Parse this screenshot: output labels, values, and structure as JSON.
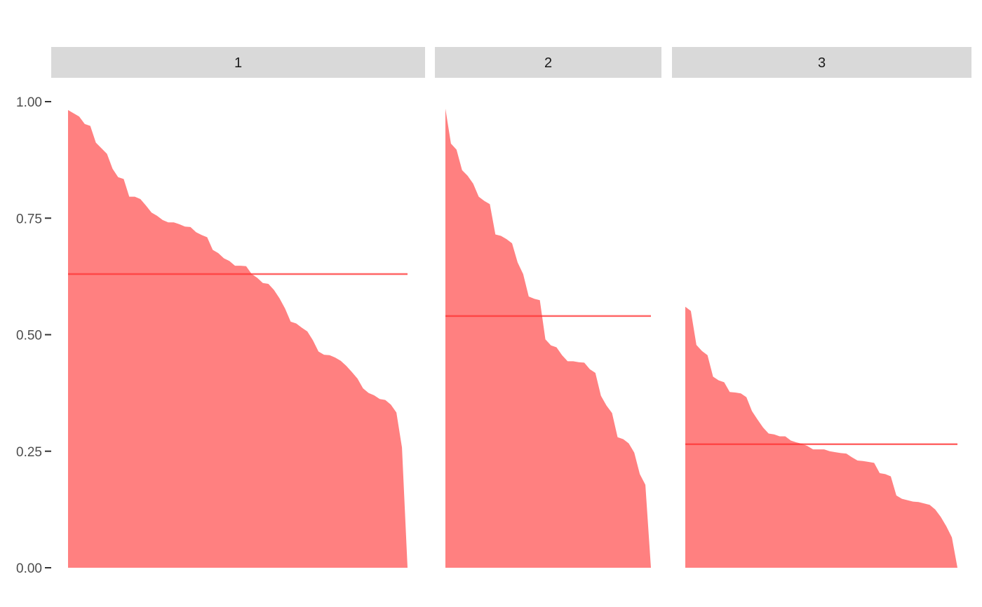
{
  "chart_data": {
    "type": "area",
    "ylim": [
      0,
      1
    ],
    "y_ticks": [
      "0.00",
      "0.25",
      "0.50",
      "0.75",
      "1.00"
    ],
    "y_tick_values": [
      0,
      0.25,
      0.5,
      0.75,
      1.0
    ],
    "grid": false,
    "fill_color": "#ff8080",
    "mean_line_color": "#ff3333",
    "strip_color": "#d9d9d9",
    "panels": [
      {
        "label": "1",
        "mean": 0.63,
        "values": [
          0.982,
          0.975,
          0.968,
          0.952,
          0.948,
          0.912,
          0.9,
          0.888,
          0.856,
          0.838,
          0.834,
          0.796,
          0.796,
          0.791,
          0.777,
          0.762,
          0.755,
          0.746,
          0.741,
          0.741,
          0.737,
          0.732,
          0.731,
          0.72,
          0.714,
          0.709,
          0.682,
          0.675,
          0.664,
          0.658,
          0.648,
          0.648,
          0.647,
          0.63,
          0.622,
          0.611,
          0.609,
          0.596,
          0.578,
          0.556,
          0.528,
          0.524,
          0.515,
          0.507,
          0.488,
          0.464,
          0.457,
          0.456,
          0.451,
          0.444,
          0.433,
          0.42,
          0.406,
          0.385,
          0.375,
          0.37,
          0.362,
          0.36,
          0.35,
          0.333,
          0.258,
          0.0
        ]
      },
      {
        "label": "2",
        "mean": 0.54,
        "values": [
          0.985,
          0.91,
          0.897,
          0.853,
          0.841,
          0.824,
          0.796,
          0.787,
          0.78,
          0.715,
          0.712,
          0.705,
          0.696,
          0.655,
          0.63,
          0.582,
          0.577,
          0.574,
          0.49,
          0.477,
          0.473,
          0.456,
          0.443,
          0.443,
          0.441,
          0.44,
          0.426,
          0.418,
          0.369,
          0.348,
          0.332,
          0.28,
          0.276,
          0.267,
          0.247,
          0.201,
          0.178,
          0.0
        ]
      },
      {
        "label": "3",
        "mean": 0.265,
        "values": [
          0.56,
          0.551,
          0.478,
          0.465,
          0.456,
          0.41,
          0.402,
          0.398,
          0.377,
          0.376,
          0.374,
          0.366,
          0.336,
          0.318,
          0.301,
          0.288,
          0.286,
          0.282,
          0.282,
          0.273,
          0.269,
          0.266,
          0.261,
          0.254,
          0.254,
          0.254,
          0.25,
          0.248,
          0.246,
          0.245,
          0.237,
          0.23,
          0.229,
          0.227,
          0.225,
          0.203,
          0.201,
          0.196,
          0.155,
          0.148,
          0.145,
          0.142,
          0.141,
          0.138,
          0.135,
          0.125,
          0.109,
          0.089,
          0.065,
          0.0
        ]
      }
    ]
  }
}
